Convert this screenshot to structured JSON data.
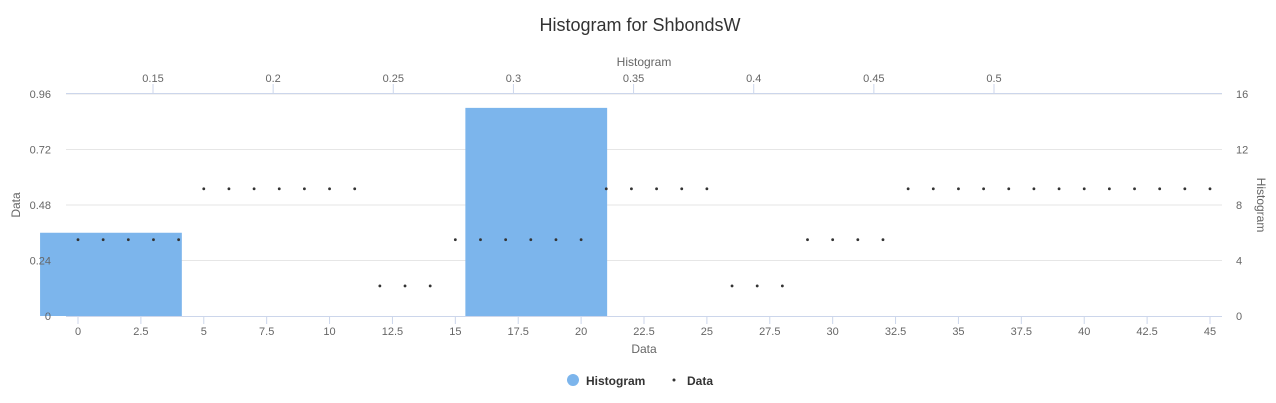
{
  "chart_data": {
    "type": "bar",
    "title": "Histogram for ShbondsW",
    "colors": {
      "histogram": "#7cb5ec",
      "data": "#333333",
      "grid": "#e6e6e6",
      "axis": "#ccd6eb"
    },
    "axes": {
      "x_bottom": {
        "title": "Data",
        "range": [
          0,
          45
        ],
        "ticks": [
          "0",
          "2.5",
          "5",
          "7.5",
          "10",
          "12.5",
          "15",
          "17.5",
          "20",
          "22.5",
          "25",
          "27.5",
          "30",
          "32.5",
          "35",
          "37.5",
          "40",
          "42.5",
          "45"
        ]
      },
      "x_top": {
        "title": "Histogram",
        "range": [
          0.1,
          0.57
        ],
        "ticks": [
          "0.15",
          "0.2",
          "0.25",
          "0.3",
          "0.35",
          "0.4",
          "0.45",
          "0.5"
        ]
      },
      "y_left": {
        "title": "Data",
        "range": [
          0,
          0.96
        ],
        "ticks": [
          "0",
          "0.24",
          "0.48",
          "0.72",
          "0.96"
        ]
      },
      "y_right": {
        "title": "Histogram",
        "range": [
          0,
          16
        ],
        "ticks": [
          "0",
          "4",
          "8",
          "12",
          "16"
        ]
      }
    },
    "grid": true,
    "legend": {
      "placement": "bottom-center",
      "items": [
        "Histogram",
        "Data"
      ]
    },
    "series": [
      {
        "name": "Histogram",
        "type": "column",
        "bins": [
          {
            "from": 0.103,
            "to": 0.162,
            "count": 6
          },
          {
            "from": 0.28,
            "to": 0.339,
            "count": 15
          }
        ]
      },
      {
        "name": "Data",
        "type": "scatter",
        "x": [
          0,
          1,
          2,
          3,
          4,
          5,
          6,
          7,
          8,
          9,
          10,
          11,
          12,
          13,
          14,
          15,
          16,
          17,
          18,
          19,
          20,
          21,
          22,
          23,
          24,
          25,
          26,
          27,
          28,
          29,
          30,
          31,
          32,
          33,
          34,
          35,
          36,
          37,
          38,
          39,
          40,
          41,
          42,
          43,
          44,
          45
        ],
        "y": [
          0.33,
          0.33,
          0.33,
          0.33,
          0.33,
          0.55,
          0.55,
          0.55,
          0.55,
          0.55,
          0.55,
          0.55,
          0.13,
          0.13,
          0.13,
          0.33,
          0.33,
          0.33,
          0.33,
          0.33,
          0.33,
          0.55,
          0.55,
          0.55,
          0.55,
          0.55,
          0.13,
          0.13,
          0.13,
          0.33,
          0.33,
          0.33,
          0.33,
          0.55,
          0.55,
          0.55,
          0.55,
          0.55,
          0.55,
          0.55,
          0.55,
          0.55,
          0.55,
          0.55,
          0.55,
          0.55
        ]
      }
    ]
  }
}
